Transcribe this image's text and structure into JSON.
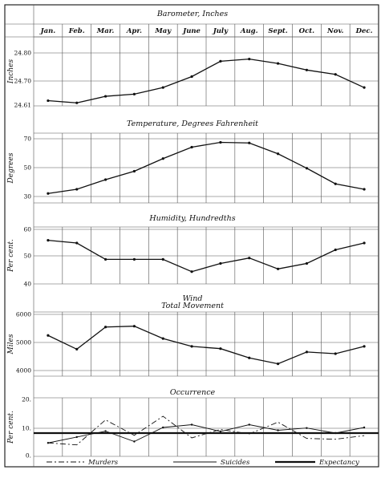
{
  "chart_data": [
    {
      "type": "line",
      "title": "Barometer, Inches",
      "ylabel": "Inches",
      "categories": [
        "Jan.",
        "Feb.",
        "Mar.",
        "Apr.",
        "May",
        "June",
        "July",
        "Aug.",
        "Sept.",
        "Oct.",
        "Nov.",
        "Dec."
      ],
      "yticks": [
        "24.61",
        "24.70",
        "24.80"
      ],
      "ylim": [
        24.61,
        24.87
      ],
      "series": [
        {
          "style": "solid",
          "values": [
            24.63,
            24.62,
            24.65,
            24.66,
            24.69,
            24.74,
            24.81,
            24.82,
            24.8,
            24.77,
            24.75,
            24.69
          ]
        }
      ]
    },
    {
      "type": "line",
      "title": "Temperature, Degrees Fahrenheit",
      "ylabel": "Degrees",
      "yticks": [
        "30",
        "50",
        "70"
      ],
      "ylim": [
        26,
        74
      ],
      "series": [
        {
          "style": "solid",
          "values": [
            28.5,
            32,
            40,
            47,
            57.5,
            67,
            71,
            70.5,
            61.5,
            49.5,
            36.5,
            32
          ]
        }
      ]
    },
    {
      "type": "line",
      "title": "Humidity, Hundredths",
      "ylabel": "Per cent.",
      "yticks": [
        "40",
        "50",
        "60"
      ],
      "ylim": [
        40,
        60
      ],
      "series": [
        {
          "style": "solid",
          "values": [
            56,
            55,
            49,
            49,
            49,
            44.5,
            47.5,
            49.5,
            45.5,
            47.5,
            52.5,
            55
          ]
        }
      ]
    },
    {
      "type": "line",
      "title": "Wind",
      "subtitle": "Total Movement",
      "ylabel": "Miles",
      "yticks": [
        "4000",
        "5000",
        "6000"
      ],
      "ylim": [
        4000,
        6000
      ],
      "series": [
        {
          "style": "solid",
          "values": [
            5250,
            4760,
            5550,
            5580,
            5140,
            4860,
            4780,
            4450,
            4240,
            4660,
            4600,
            4860
          ]
        }
      ]
    },
    {
      "type": "line",
      "title": "Occurrence",
      "ylabel": "Per cent.",
      "yticks": [
        "0.",
        "10.",
        "20."
      ],
      "ylim": [
        0,
        20
      ],
      "series": [
        {
          "name": "Murders",
          "style": "dashdot",
          "values": [
            4.5,
            3.8,
            12.7,
            7.2,
            14.0,
            6.3,
            9.3,
            7.7,
            11.9,
            6.1,
            5.8,
            7.1
          ]
        },
        {
          "name": "Suicides",
          "style": "thin",
          "values": [
            4.5,
            6.6,
            8.7,
            5.0,
            10.0,
            11.0,
            8.6,
            11.0,
            9.0,
            9.8,
            8.0,
            10.0
          ]
        },
        {
          "name": "Expectancy",
          "style": "thick",
          "values": [
            8.0,
            8.0,
            8.0,
            8.0,
            8.0,
            8.0,
            8.0,
            8.0,
            8.0,
            8.0,
            8.0,
            8.0
          ]
        }
      ]
    }
  ]
}
